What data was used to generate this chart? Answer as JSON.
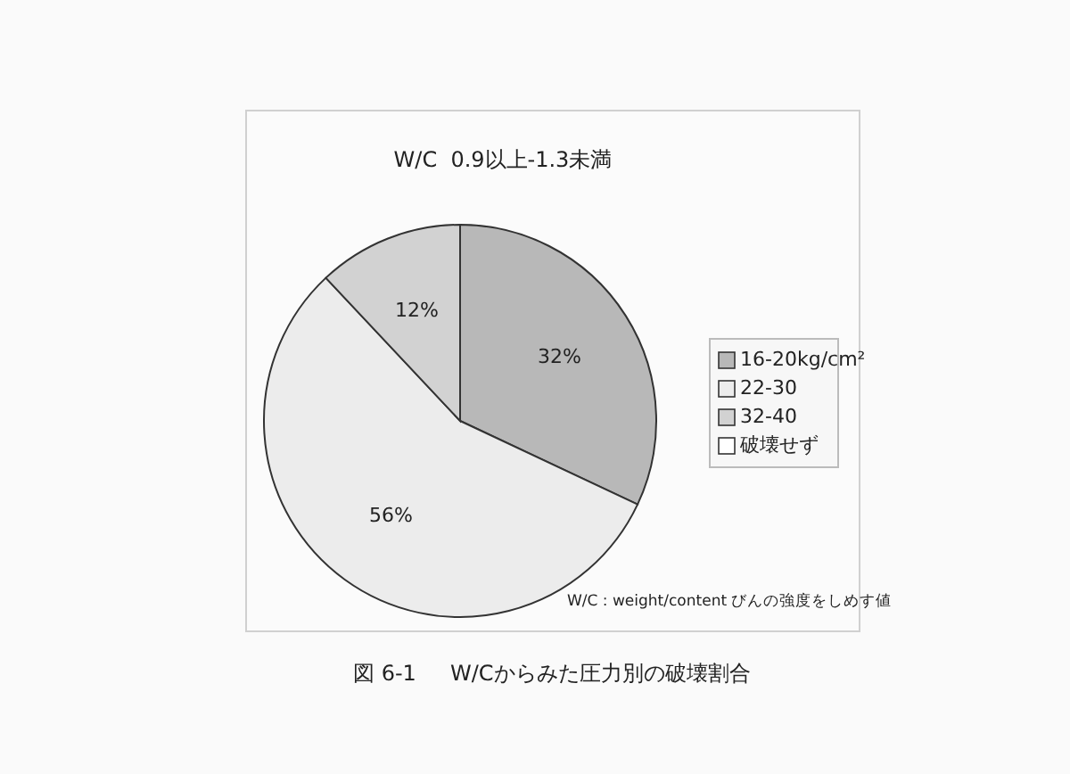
{
  "chart_data": {
    "type": "pie",
    "title": "W/C  0.9以上-1.3未満",
    "categories": [
      "16-20kg/cm²",
      "22-30",
      "32-40",
      "破壊せず"
    ],
    "values": [
      32,
      56,
      12,
      0
    ],
    "colors": [
      "#b8b8b8",
      "#ececec",
      "#d2d2d2",
      "#ffffff"
    ],
    "value_labels": [
      "32%",
      "56%",
      "12%",
      null
    ],
    "legend": "right",
    "annotations": [
      "W/C : weight/content びんの強度をしめす値",
      "図 6-1     W/Cからみた圧力別の破壊割合"
    ]
  }
}
